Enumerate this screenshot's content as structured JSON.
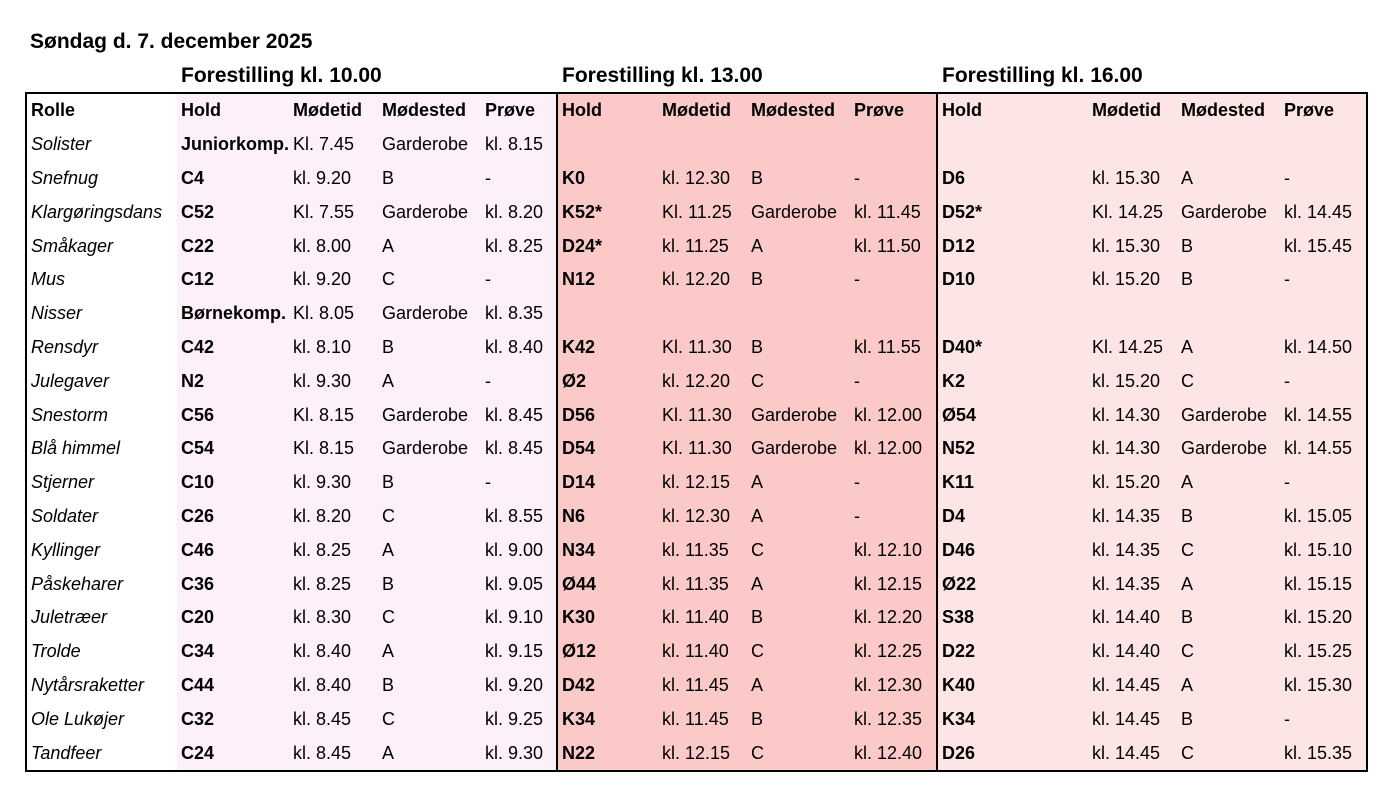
{
  "title": "Søndag d. 7. december 2025",
  "shows": [
    "Forestilling kl. 10.00",
    "Forestilling kl. 13.00",
    "Forestilling kl. 16.00"
  ],
  "columns": {
    "rolle": "Rolle",
    "hold": "Hold",
    "modetid": "Mødetid",
    "modested": "Mødested",
    "prove": "Prøve"
  },
  "rows": [
    {
      "rolle": "Solister",
      "s": [
        [
          "Juniorkomp.",
          "Kl. 7.45",
          "Garderobe",
          "kl. 8.15"
        ],
        [
          "",
          "",
          "",
          ""
        ],
        [
          "",
          "",
          "",
          ""
        ]
      ]
    },
    {
      "rolle": "Snefnug",
      "s": [
        [
          "C4",
          "kl. 9.20",
          "B",
          "-"
        ],
        [
          "K0",
          "kl. 12.30",
          "B",
          "-"
        ],
        [
          "D6",
          "kl. 15.30",
          "A",
          "-"
        ]
      ]
    },
    {
      "rolle": "Klargøringsdans",
      "s": [
        [
          "C52",
          "Kl. 7.55",
          "Garderobe",
          "kl. 8.20"
        ],
        [
          "K52*",
          "Kl. 11.25",
          "Garderobe",
          "kl. 11.45"
        ],
        [
          "D52*",
          "Kl. 14.25",
          "Garderobe",
          "kl. 14.45"
        ]
      ]
    },
    {
      "rolle": "Småkager",
      "s": [
        [
          "C22",
          "kl. 8.00",
          "A",
          "kl. 8.25"
        ],
        [
          "D24*",
          "kl. 11.25",
          "A",
          "kl. 11.50"
        ],
        [
          "D12",
          "kl. 15.30",
          "B",
          "kl. 15.45"
        ]
      ]
    },
    {
      "rolle": "Mus",
      "s": [
        [
          "C12",
          "kl. 9.20",
          "C",
          "-"
        ],
        [
          "N12",
          "kl. 12.20",
          "B",
          "-"
        ],
        [
          "D10",
          "kl. 15.20",
          "B",
          "-"
        ]
      ]
    },
    {
      "rolle": "Nisser",
      "s": [
        [
          "Børnekomp.",
          "Kl. 8.05",
          "Garderobe",
          "kl. 8.35"
        ],
        [
          "",
          "",
          "",
          ""
        ],
        [
          "",
          "",
          "",
          ""
        ]
      ]
    },
    {
      "rolle": "Rensdyr",
      "s": [
        [
          "C42",
          "kl. 8.10",
          "B",
          "kl. 8.40"
        ],
        [
          "K42",
          "Kl. 11.30",
          "B",
          "kl. 11.55"
        ],
        [
          "D40*",
          "Kl. 14.25",
          "A",
          "kl. 14.50"
        ]
      ]
    },
    {
      "rolle": "Julegaver",
      "s": [
        [
          "N2",
          "kl. 9.30",
          "A",
          "-"
        ],
        [
          "Ø2",
          "kl. 12.20",
          "C",
          "-"
        ],
        [
          "K2",
          "kl. 15.20",
          "C",
          "-"
        ]
      ]
    },
    {
      "rolle": "Snestorm",
      "s": [
        [
          "C56",
          "Kl. 8.15",
          "Garderobe",
          "kl. 8.45"
        ],
        [
          "D56",
          "Kl. 11.30",
          "Garderobe",
          "kl. 12.00"
        ],
        [
          "Ø54",
          "kl. 14.30",
          "Garderobe",
          "kl. 14.55"
        ]
      ]
    },
    {
      "rolle": "Blå himmel",
      "s": [
        [
          "C54",
          "Kl. 8.15",
          "Garderobe",
          "kl. 8.45"
        ],
        [
          "D54",
          "Kl. 11.30",
          "Garderobe",
          "kl. 12.00"
        ],
        [
          "N52",
          "kl. 14.30",
          "Garderobe",
          "kl. 14.55"
        ]
      ]
    },
    {
      "rolle": "Stjerner",
      "s": [
        [
          "C10",
          "kl. 9.30",
          "B",
          "-"
        ],
        [
          "D14",
          "kl. 12.15",
          "A",
          "-"
        ],
        [
          "K11",
          "kl. 15.20",
          "A",
          "-"
        ]
      ]
    },
    {
      "rolle": "Soldater",
      "s": [
        [
          "C26",
          "kl. 8.20",
          "C",
          "kl. 8.55"
        ],
        [
          "N6",
          "kl. 12.30",
          "A",
          "-"
        ],
        [
          "D4",
          "kl. 14.35",
          "B",
          "kl. 15.05"
        ]
      ]
    },
    {
      "rolle": "Kyllinger",
      "s": [
        [
          "C46",
          "kl. 8.25",
          "A",
          "kl. 9.00"
        ],
        [
          "N34",
          "kl. 11.35",
          "C",
          "kl. 12.10"
        ],
        [
          "D46",
          "kl. 14.35",
          "C",
          "kl. 15.10"
        ]
      ]
    },
    {
      "rolle": "Påskeharer",
      "s": [
        [
          "C36",
          "kl. 8.25",
          "B",
          "kl. 9.05"
        ],
        [
          "Ø44",
          "kl. 11.35",
          "A",
          "kl. 12.15"
        ],
        [
          "Ø22",
          "kl. 14.35",
          "A",
          "kl. 15.15"
        ]
      ]
    },
    {
      "rolle": "Juletræer",
      "s": [
        [
          "C20",
          "kl. 8.30",
          "C",
          "kl. 9.10"
        ],
        [
          "K30",
          "kl. 11.40",
          "B",
          "kl. 12.20"
        ],
        [
          "S38",
          "kl. 14.40",
          "B",
          "kl. 15.20"
        ]
      ]
    },
    {
      "rolle": "Trolde",
      "s": [
        [
          "C34",
          "kl. 8.40",
          "A",
          "kl. 9.15"
        ],
        [
          "Ø12",
          "kl. 11.40",
          "C",
          "kl. 12.25"
        ],
        [
          "D22",
          "kl. 14.40",
          "C",
          "kl. 15.25"
        ]
      ]
    },
    {
      "rolle": "Nytårsraketter",
      "s": [
        [
          "C44",
          "kl. 8.40",
          "B",
          "kl. 9.20"
        ],
        [
          "D42",
          "kl. 11.45",
          "A",
          "kl. 12.30"
        ],
        [
          "K40",
          "kl. 14.45",
          "A",
          "kl. 15.30"
        ]
      ]
    },
    {
      "rolle": "Ole Lukøjer",
      "s": [
        [
          "C32",
          "kl. 8.45",
          "C",
          "kl. 9.25"
        ],
        [
          "K34",
          "kl. 11.45",
          "B",
          "kl. 12.35"
        ],
        [
          "K34",
          "kl. 14.45",
          "B",
          "-"
        ]
      ]
    },
    {
      "rolle": "Tandfeer",
      "s": [
        [
          "C24",
          "kl. 8.45",
          "A",
          "kl. 9.30"
        ],
        [
          "N22",
          "kl. 12.15",
          "C",
          "kl. 12.40"
        ],
        [
          "D26",
          "kl. 14.45",
          "C",
          "kl. 15.35"
        ]
      ]
    }
  ]
}
